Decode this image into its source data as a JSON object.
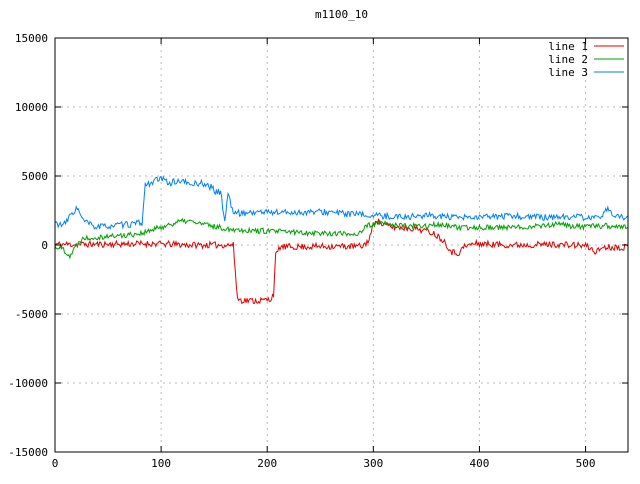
{
  "chart_data": {
    "type": "line",
    "title": "m1100_10",
    "xlabel": "",
    "ylabel": "",
    "xlim": [
      0,
      540
    ],
    "ylim": [
      -15000,
      15000
    ],
    "xticks": [
      0,
      100,
      200,
      300,
      400,
      500
    ],
    "yticks": [
      -15000,
      -10000,
      -5000,
      0,
      5000,
      10000,
      15000
    ],
    "grid": true,
    "grid_color": "#b8b8b8",
    "border_color": "#000000",
    "legend_position": "top-right",
    "series": [
      {
        "name": "line 1",
        "color": "#e00000",
        "noise": 230,
        "seed": 11,
        "keypoints": [
          [
            0,
            50
          ],
          [
            40,
            50
          ],
          [
            90,
            100
          ],
          [
            130,
            0
          ],
          [
            168,
            0
          ],
          [
            172,
            -3900
          ],
          [
            176,
            -4000
          ],
          [
            190,
            -4050
          ],
          [
            203,
            -3950
          ],
          [
            206,
            -3500
          ],
          [
            208,
            -800
          ],
          [
            212,
            -150
          ],
          [
            250,
            -100
          ],
          [
            290,
            -100
          ],
          [
            296,
            400
          ],
          [
            302,
            1900
          ],
          [
            308,
            1500
          ],
          [
            318,
            1300
          ],
          [
            340,
            1200
          ],
          [
            356,
            900
          ],
          [
            366,
            350
          ],
          [
            374,
            -500
          ],
          [
            380,
            -600
          ],
          [
            386,
            -100
          ],
          [
            395,
            100
          ],
          [
            430,
            0
          ],
          [
            470,
            50
          ],
          [
            500,
            -50
          ],
          [
            510,
            -500
          ],
          [
            516,
            -150
          ],
          [
            540,
            -150
          ]
        ]
      },
      {
        "name": "line 2",
        "color": "#00a000",
        "noise": 200,
        "seed": 22,
        "keypoints": [
          [
            0,
            -100
          ],
          [
            8,
            -300
          ],
          [
            14,
            -800
          ],
          [
            18,
            -300
          ],
          [
            25,
            500
          ],
          [
            45,
            600
          ],
          [
            65,
            700
          ],
          [
            85,
            900
          ],
          [
            100,
            1300
          ],
          [
            115,
            1650
          ],
          [
            125,
            1750
          ],
          [
            140,
            1500
          ],
          [
            160,
            1200
          ],
          [
            185,
            1050
          ],
          [
            220,
            950
          ],
          [
            255,
            850
          ],
          [
            285,
            800
          ],
          [
            295,
            1400
          ],
          [
            305,
            1600
          ],
          [
            325,
            1400
          ],
          [
            345,
            1350
          ],
          [
            365,
            1500
          ],
          [
            382,
            1200
          ],
          [
            400,
            1300
          ],
          [
            430,
            1250
          ],
          [
            455,
            1400
          ],
          [
            475,
            1500
          ],
          [
            495,
            1300
          ],
          [
            515,
            1400
          ],
          [
            540,
            1300
          ]
        ]
      },
      {
        "name": "line 3",
        "color": "#0080ff",
        "noise": 230,
        "seed": 33,
        "keypoints": [
          [
            0,
            1600
          ],
          [
            8,
            1400
          ],
          [
            16,
            2300
          ],
          [
            21,
            2700
          ],
          [
            26,
            1800
          ],
          [
            38,
            1300
          ],
          [
            55,
            1400
          ],
          [
            70,
            1500
          ],
          [
            82,
            1600
          ],
          [
            85,
            4300
          ],
          [
            92,
            4600
          ],
          [
            100,
            4800
          ],
          [
            108,
            4500
          ],
          [
            118,
            4650
          ],
          [
            128,
            4400
          ],
          [
            138,
            4500
          ],
          [
            147,
            4200
          ],
          [
            152,
            3800
          ],
          [
            156,
            3900
          ],
          [
            160,
            1700
          ],
          [
            163,
            3800
          ],
          [
            167,
            2500
          ],
          [
            172,
            2300
          ],
          [
            195,
            2400
          ],
          [
            225,
            2350
          ],
          [
            255,
            2400
          ],
          [
            285,
            2200
          ],
          [
            305,
            2100
          ],
          [
            330,
            2050
          ],
          [
            355,
            2150
          ],
          [
            378,
            1950
          ],
          [
            400,
            2000
          ],
          [
            430,
            2100
          ],
          [
            460,
            2000
          ],
          [
            490,
            2050
          ],
          [
            512,
            1900
          ],
          [
            522,
            2700
          ],
          [
            528,
            2000
          ],
          [
            540,
            2000
          ]
        ]
      }
    ],
    "legend": [
      "line 1",
      "line 2",
      "line 3"
    ]
  }
}
